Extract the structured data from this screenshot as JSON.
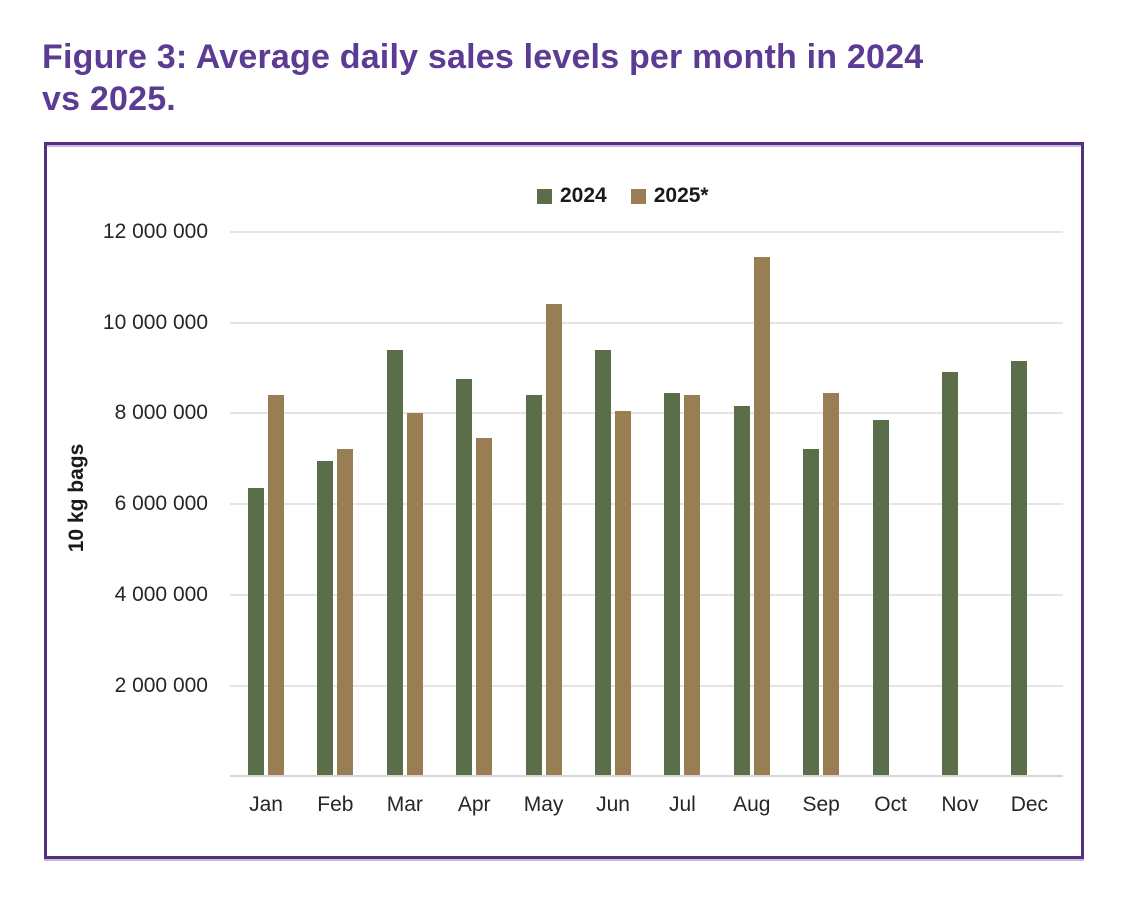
{
  "title": {
    "lines": [
      "Figure 3: Average daily sales levels per month in 2024",
      "vs 2025."
    ],
    "color": "#5C3B94"
  },
  "figure_box": {
    "border_color": "#54317E",
    "accent_color": "#CBBAE6",
    "background": "#FFFFFF"
  },
  "legend": {
    "position": "top-center",
    "items": [
      {
        "label": "2024",
        "color": "#5B6E4A"
      },
      {
        "label": "2025*",
        "color": "#9A7E53"
      }
    ]
  },
  "y_axis": {
    "title": "10 kg bags",
    "tick_labels": [
      "12 000 000",
      "10 000 000",
      "8 000 000",
      "6 000 000",
      "4 000 000",
      "2 000 000"
    ],
    "gridline_color": "#E4E4E4",
    "axis_line_color": "#D5D5D5"
  },
  "x_axis": {
    "labels": [
      "Jan",
      "Feb",
      "Mar",
      "Apr",
      "May",
      "Jun",
      "Jul",
      "Aug",
      "Sep",
      "Oct",
      "Nov",
      "Dec"
    ]
  },
  "chart_data": {
    "type": "bar",
    "title": "Figure 3: Average daily sales levels per month in 2024 vs 2025.",
    "categories": [
      "Jan",
      "Feb",
      "Mar",
      "Apr",
      "May",
      "Jun",
      "Jul",
      "Aug",
      "Sep",
      "Oct",
      "Nov",
      "Dec"
    ],
    "series": [
      {
        "name": "2024",
        "color": "#5B6E4A",
        "values": [
          6350000,
          6950000,
          9400000,
          8750000,
          8400000,
          9400000,
          8450000,
          8150000,
          7200000,
          7850000,
          8900000,
          9150000
        ]
      },
      {
        "name": "2025*",
        "color": "#9A7E53",
        "values": [
          8400000,
          7200000,
          8000000,
          7450000,
          10400000,
          8050000,
          8400000,
          11450000,
          8450000,
          null,
          null,
          null
        ]
      }
    ],
    "xlabel": "",
    "ylabel": "10 kg bags",
    "ylim": [
      0,
      12000000
    ],
    "ytick_step": 2000000,
    "grid": "horizontal",
    "legend_position": "top"
  }
}
